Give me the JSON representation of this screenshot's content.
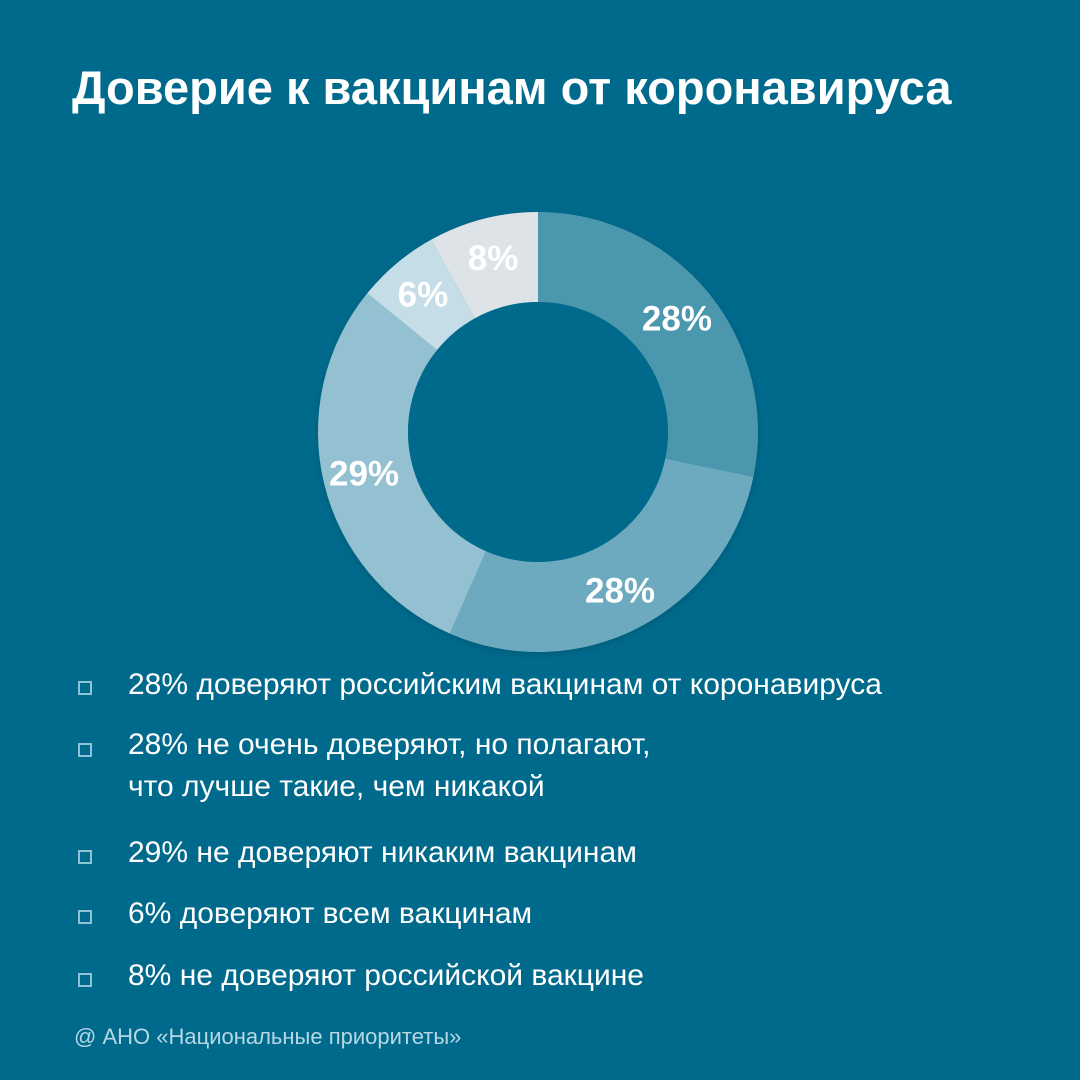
{
  "title": "Доверие к вакцинам от коронавируса",
  "footer": "@ АНО «Национальные приоритеты»",
  "colors": {
    "background": "#006a8c",
    "text": "#ffffff",
    "legend_marker": "#8fc3d6",
    "footer_text": "#b6d7e3"
  },
  "chart_data": {
    "type": "pie",
    "title": "Доверие к вакцинам от коронавируса",
    "donut": true,
    "unit": "%",
    "slices": [
      {
        "value": 28,
        "label": "28%",
        "color": "#4b97ae",
        "legend": "28% доверяют российским вакцинам от коронавируса"
      },
      {
        "value": 28,
        "label": "28%",
        "color": "#6eaabf",
        "legend": "28% не очень доверяют, но полагают,\nчто лучше такие, чем никакой"
      },
      {
        "value": 29,
        "label": "29%",
        "color": "#94c1d1",
        "legend": "29% не доверяют никаким вакцинам"
      },
      {
        "value": 6,
        "label": "6%",
        "color": "#c4dde6",
        "legend": "6% доверяют всем вакцинам"
      },
      {
        "value": 8,
        "label": "8%",
        "color": "#dde3e6",
        "legend": "8%  не доверяют российской вакцине"
      }
    ]
  }
}
